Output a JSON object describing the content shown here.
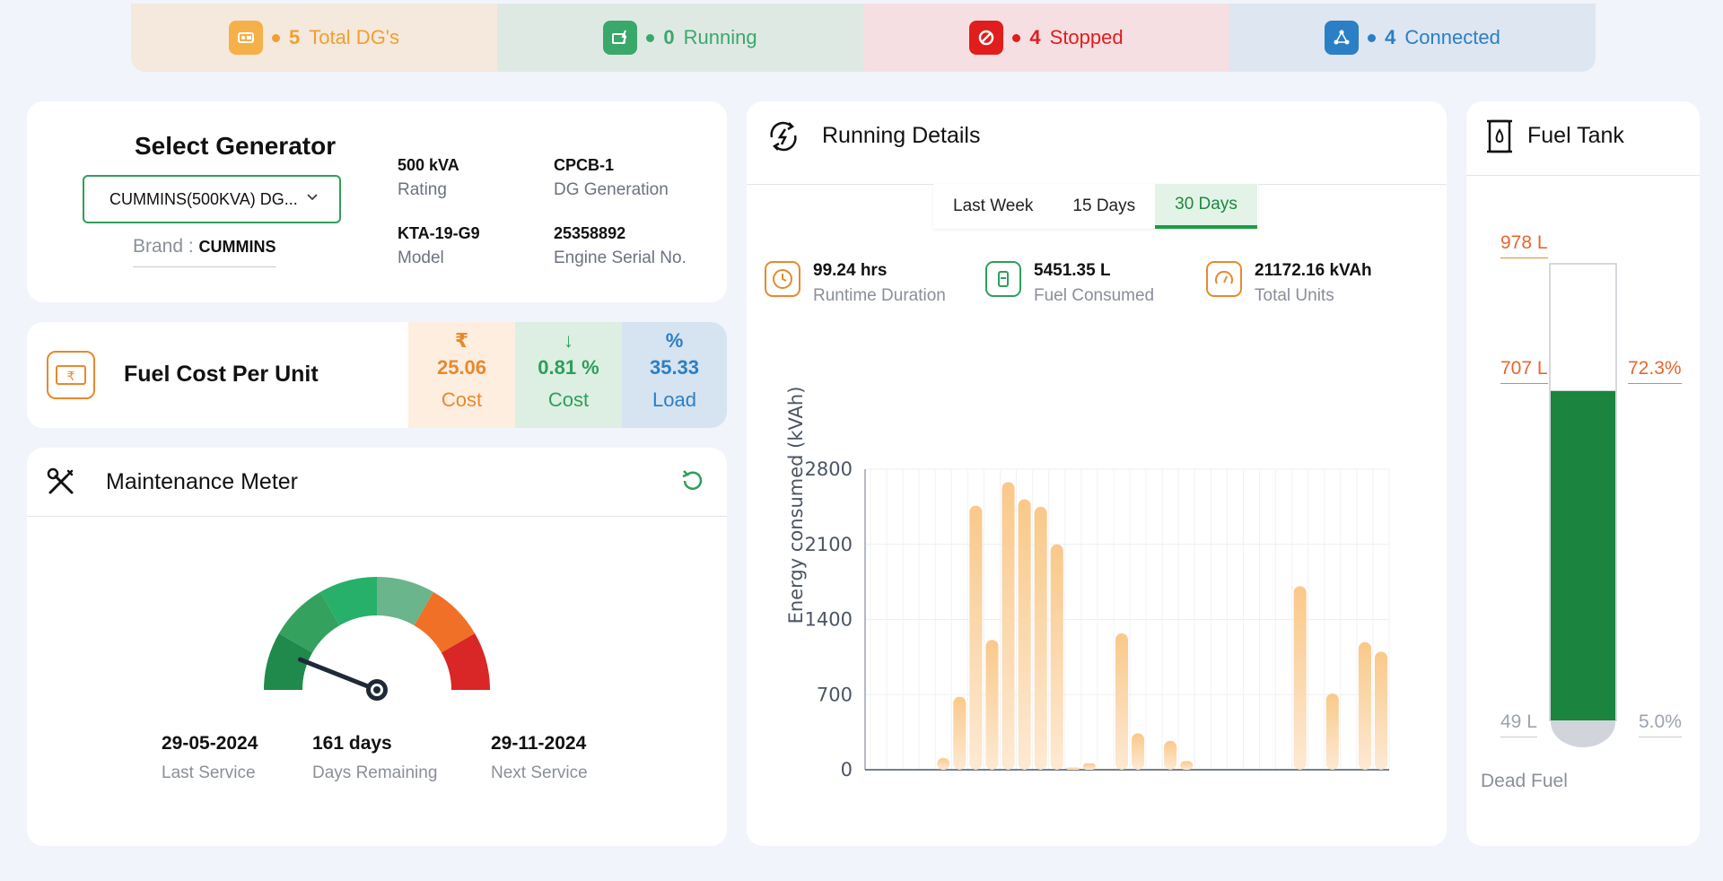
{
  "status_bar": {
    "items": [
      {
        "count": "5",
        "label": "Total DG's",
        "color": "#f0a030",
        "bg": "#f5e8dc"
      },
      {
        "count": "0",
        "label": "Running",
        "color": "#3aa86b",
        "bg": "#dfe9e4"
      },
      {
        "count": "4",
        "label": "Stopped",
        "color": "#e11d1d",
        "bg": "#f5dfe2"
      },
      {
        "count": "4",
        "label": "Connected",
        "color": "#2b7fc4",
        "bg": "#dde6f1"
      }
    ]
  },
  "generator": {
    "title": "Select Generator",
    "selected": "CUMMINS(500KVA) DG...",
    "brand_label": "Brand : ",
    "brand_value": "CUMMINS",
    "specs": [
      {
        "value": "500 kVA",
        "label": "Rating"
      },
      {
        "value": "CPCB-1",
        "label": "DG Generation"
      },
      {
        "value": "KTA-19-G9",
        "label": "Model"
      },
      {
        "value": "25358892",
        "label": "Engine Serial No."
      }
    ]
  },
  "fuel_cost": {
    "title": "Fuel Cost Per Unit",
    "columns": [
      {
        "symbol": "₹",
        "value": "25.06",
        "label": "Cost",
        "color": "#e8892d",
        "bg": "#fdeee0"
      },
      {
        "symbol": "↓",
        "value": "0.81 %",
        "label": "Cost",
        "color": "#2f9e5a",
        "bg": "#dcefe2"
      },
      {
        "symbol": "%",
        "value": "35.33",
        "label": "Load",
        "color": "#2b7fc4",
        "bg": "#d6e3f0"
      }
    ]
  },
  "maintenance": {
    "title": "Maintenance Meter",
    "gauge_fraction": 0.12,
    "last_service": {
      "value": "29-05-2024",
      "label": "Last Service"
    },
    "days_remaining": {
      "value": "161 days",
      "label": "Days Remaining"
    },
    "next_service": {
      "value": "29-11-2024",
      "label": "Next Service"
    }
  },
  "running_details": {
    "title": "Running Details",
    "tabs": [
      "Last Week",
      "15 Days",
      "30 Days"
    ],
    "active_tab": "30 Days",
    "metrics": [
      {
        "value": "99.24 hrs",
        "label": "Runtime Duration",
        "icon": "clock-icon",
        "color": "#e8892d"
      },
      {
        "value": "5451.35 L",
        "label": "Fuel Consumed",
        "icon": "fuel-can-icon",
        "color": "#2f9e5a"
      },
      {
        "value": "21172.16 kVAh",
        "label": "Total Units",
        "icon": "gauge-icon",
        "color": "#e8892d"
      }
    ]
  },
  "chart_data": {
    "type": "bar",
    "ylabel": "Energy consumed (kVAh)",
    "ylim": [
      0,
      2800
    ],
    "yticks": [
      "2800",
      "2100",
      "1400",
      "700",
      "0"
    ],
    "values": [
      0,
      0,
      0,
      0,
      110,
      680,
      2460,
      1210,
      2680,
      2520,
      2450,
      2100,
      20,
      60,
      0,
      1270,
      340,
      0,
      270,
      80,
      0,
      0,
      0,
      0,
      0,
      0,
      1710,
      0,
      710,
      0,
      1190,
      1100
    ],
    "color": "#f9c98a"
  },
  "fuel_tank": {
    "title": "Fuel Tank",
    "capacity": "978 L",
    "current": "707 L",
    "percent": "72.3%",
    "dead_fuel": "49 L",
    "dead_percent": "5.0%",
    "dead_label": "Dead Fuel",
    "fill_fraction": 0.723
  }
}
